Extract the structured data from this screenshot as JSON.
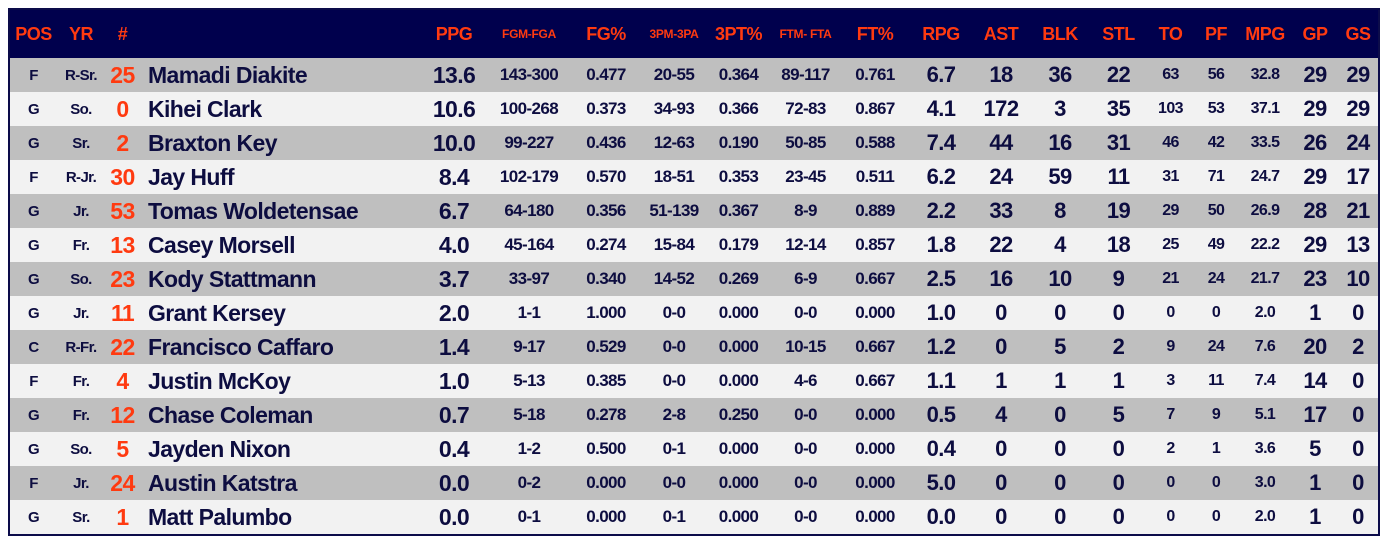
{
  "colors": {
    "header_bg": "#00004d",
    "header_text": "#ff3a10",
    "number": "#ff3a10",
    "text": "#0d0d40",
    "row_odd": "#bfbfbf",
    "row_even": "#f2f2f2"
  },
  "columns": [
    "POS",
    "YR",
    "#",
    "",
    "PPG",
    "FGM-FGA",
    "FG%",
    "3PM-3PA",
    "3PT%",
    "FTM- FTA",
    "FT%",
    "RPG",
    "AST",
    "BLK",
    "STL",
    "TO",
    "PF",
    "MPG",
    "GP",
    "GS"
  ],
  "rows": [
    [
      "F",
      "R-Sr.",
      "25",
      "Mamadi Diakite",
      "13.6",
      "143-300",
      "0.477",
      "20-55",
      "0.364",
      "89-117",
      "0.761",
      "6.7",
      "18",
      "36",
      "22",
      "63",
      "56",
      "32.8",
      "29",
      "29"
    ],
    [
      "G",
      "So.",
      "0",
      "Kihei Clark",
      "10.6",
      "100-268",
      "0.373",
      "34-93",
      "0.366",
      "72-83",
      "0.867",
      "4.1",
      "172",
      "3",
      "35",
      "103",
      "53",
      "37.1",
      "29",
      "29"
    ],
    [
      "G",
      "Sr.",
      "2",
      "Braxton Key",
      "10.0",
      "99-227",
      "0.436",
      "12-63",
      "0.190",
      "50-85",
      "0.588",
      "7.4",
      "44",
      "16",
      "31",
      "46",
      "42",
      "33.5",
      "26",
      "24"
    ],
    [
      "F",
      "R-Jr.",
      "30",
      "Jay Huff",
      "8.4",
      "102-179",
      "0.570",
      "18-51",
      "0.353",
      "23-45",
      "0.511",
      "6.2",
      "24",
      "59",
      "11",
      "31",
      "71",
      "24.7",
      "29",
      "17"
    ],
    [
      "G",
      "Jr.",
      "53",
      "Tomas Woldetensae",
      "6.7",
      "64-180",
      "0.356",
      "51-139",
      "0.367",
      "8-9",
      "0.889",
      "2.2",
      "33",
      "8",
      "19",
      "29",
      "50",
      "26.9",
      "28",
      "21"
    ],
    [
      "G",
      "Fr.",
      "13",
      "Casey Morsell",
      "4.0",
      "45-164",
      "0.274",
      "15-84",
      "0.179",
      "12-14",
      "0.857",
      "1.8",
      "22",
      "4",
      "18",
      "25",
      "49",
      "22.2",
      "29",
      "13"
    ],
    [
      "G",
      "So.",
      "23",
      "Kody Stattmann",
      "3.7",
      "33-97",
      "0.340",
      "14-52",
      "0.269",
      "6-9",
      "0.667",
      "2.5",
      "16",
      "10",
      "9",
      "21",
      "24",
      "21.7",
      "23",
      "10"
    ],
    [
      "G",
      "Jr.",
      "11",
      "Grant Kersey",
      "2.0",
      "1-1",
      "1.000",
      "0-0",
      "0.000",
      "0-0",
      "0.000",
      "1.0",
      "0",
      "0",
      "0",
      "0",
      "0",
      "2.0",
      "1",
      "0"
    ],
    [
      "C",
      "R-Fr.",
      "22",
      "Francisco Caffaro",
      "1.4",
      "9-17",
      "0.529",
      "0-0",
      "0.000",
      "10-15",
      "0.667",
      "1.2",
      "0",
      "5",
      "2",
      "9",
      "24",
      "7.6",
      "20",
      "2"
    ],
    [
      "F",
      "Fr.",
      "4",
      "Justin McKoy",
      "1.0",
      "5-13",
      "0.385",
      "0-0",
      "0.000",
      "4-6",
      "0.667",
      "1.1",
      "1",
      "1",
      "1",
      "3",
      "11",
      "7.4",
      "14",
      "0"
    ],
    [
      "G",
      "Fr.",
      "12",
      "Chase Coleman",
      "0.7",
      "5-18",
      "0.278",
      "2-8",
      "0.250",
      "0-0",
      "0.000",
      "0.5",
      "4",
      "0",
      "5",
      "7",
      "9",
      "5.1",
      "17",
      "0"
    ],
    [
      "G",
      "So.",
      "5",
      "Jayden Nixon",
      "0.4",
      "1-2",
      "0.500",
      "0-1",
      "0.000",
      "0-0",
      "0.000",
      "0.4",
      "0",
      "0",
      "0",
      "2",
      "1",
      "3.6",
      "5",
      "0"
    ],
    [
      "F",
      "Jr.",
      "24",
      "Austin Katstra",
      "0.0",
      "0-2",
      "0.000",
      "0-0",
      "0.000",
      "0-0",
      "0.000",
      "5.0",
      "0",
      "0",
      "0",
      "0",
      "0",
      "3.0",
      "1",
      "0"
    ],
    [
      "G",
      "Sr.",
      "1",
      "Matt Palumbo",
      "0.0",
      "0-1",
      "0.000",
      "0-1",
      "0.000",
      "0-0",
      "0.000",
      "0.0",
      "0",
      "0",
      "0",
      "0",
      "0",
      "2.0",
      "1",
      "0"
    ]
  ]
}
